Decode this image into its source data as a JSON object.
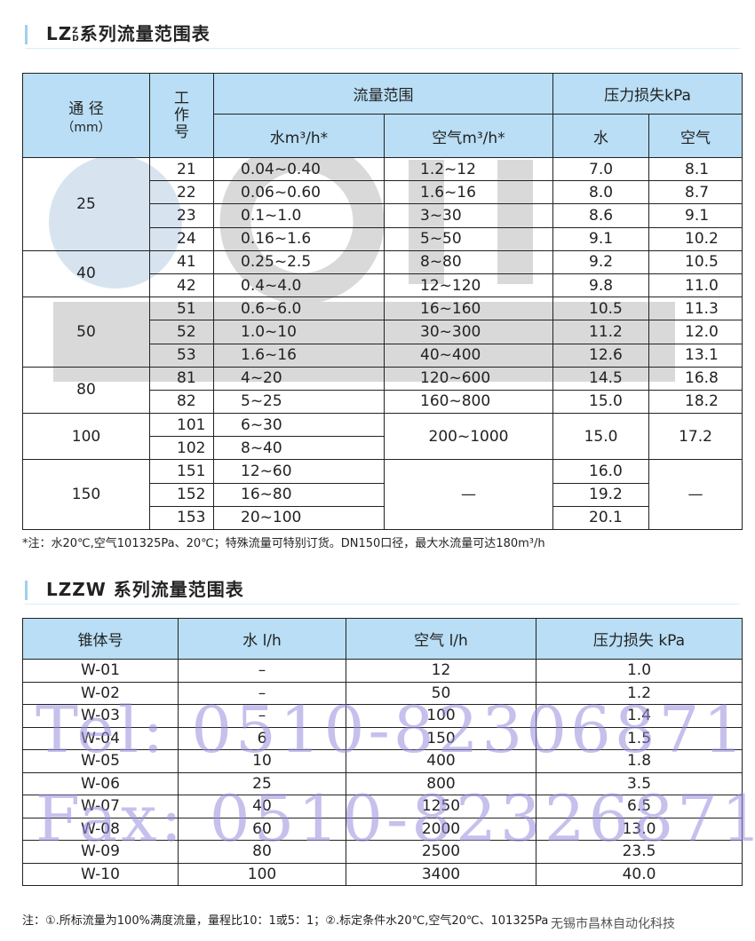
{
  "table1": {
    "title": "LZ系列流量范围表",
    "title_sup": "Z",
    "title_sub": "D",
    "headers": {
      "dn": "通 径",
      "dn_unit": "（mm）",
      "work_no": "工作号",
      "flow": "流量范围",
      "water_flow": "水m³/h*",
      "air_flow": "空气m³/h*",
      "pressure": "压力损失kPa",
      "water": "水",
      "air": "空气"
    },
    "groups": [
      {
        "dn": "25",
        "rows": [
          [
            "21",
            "0.04~0.40",
            "1.2~12",
            "7.0",
            "8.1"
          ],
          [
            "22",
            "0.06~0.60",
            "1.6~16",
            "8.0",
            "8.7"
          ],
          [
            "23",
            "0.1~1.0",
            "3~30",
            "8.6",
            "9.1"
          ],
          [
            "24",
            "0.16~1.6",
            "5~50",
            "9.1",
            "10.2"
          ]
        ]
      },
      {
        "dn": "40",
        "rows": [
          [
            "41",
            "0.25~2.5",
            "8~80",
            "9.2",
            "10.5"
          ],
          [
            "42",
            "0.4~4.0",
            "12~120",
            "9.8",
            "11.0"
          ]
        ]
      },
      {
        "dn": "50",
        "rows": [
          [
            "51",
            "0.6~6.0",
            "16~160",
            "10.5",
            "11.3"
          ],
          [
            "52",
            "1.0~10",
            "30~300",
            "11.2",
            "12.0"
          ],
          [
            "53",
            "1.6~16",
            "40~400",
            "12.6",
            "13.1"
          ]
        ]
      },
      {
        "dn": "80",
        "rows": [
          [
            "81",
            "4~20",
            "120~600",
            "14.5",
            "16.8"
          ],
          [
            "82",
            "5~25",
            "160~800",
            "15.0",
            "18.2"
          ]
        ]
      },
      {
        "dn": "100",
        "rows": [
          [
            "101",
            "6~30",
            "200~1000",
            "15.0",
            "17.2"
          ],
          [
            "102",
            "8~40",
            null,
            null,
            null
          ]
        ]
      },
      {
        "dn": "150",
        "rows": [
          [
            "151",
            "12~60",
            "—",
            "16.0",
            "—"
          ],
          [
            "152",
            "16~80",
            null,
            "19.2",
            null
          ],
          [
            "153",
            "20~100",
            null,
            "20.1",
            null
          ]
        ]
      }
    ],
    "note": "*注：水20℃,空气101325Pa、20℃；特殊流量可特别订货。DN150口径，最大水流量可达180m³/h"
  },
  "table2": {
    "title": "LZZW 系列流量范围表",
    "headers": [
      "锥体号",
      "水 l/h",
      "空气 l/h",
      "压力损失 kPa"
    ],
    "rows": [
      [
        "W-01",
        "–",
        "12",
        "1.0"
      ],
      [
        "W-02",
        "–",
        "50",
        "1.2"
      ],
      [
        "W-03",
        "–",
        "100",
        "1.4"
      ],
      [
        "W-04",
        "6",
        "150",
        "1.5"
      ],
      [
        "W-05",
        "10",
        "400",
        "1.8"
      ],
      [
        "W-06",
        "25",
        "800",
        "3.5"
      ],
      [
        "W-07",
        "40",
        "1250",
        "6.5"
      ],
      [
        "W-08",
        "60",
        "2000",
        "13.0"
      ],
      [
        "W-09",
        "80",
        "2500",
        "23.5"
      ],
      [
        "W-10",
        "100",
        "3400",
        "40.0"
      ]
    ],
    "note": "注：①.所标流量为100%满度流量，量程比10：1或5：1；②.标定条件水20℃,空气20℃、101325Pa"
  },
  "watermarks": {
    "tel": "Tel: 0510-82306871",
    "fax": "Fax: 0510-82326871",
    "company": "无锡市昌林自动化科技"
  },
  "colors": {
    "header_bg": "#b9def5",
    "watermark": "#968cdc"
  }
}
